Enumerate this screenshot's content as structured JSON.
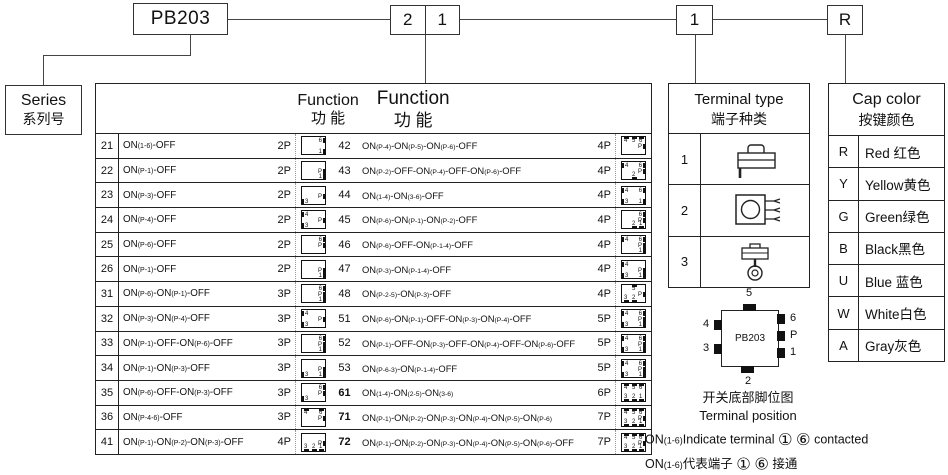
{
  "top_flow": {
    "series_code": "PB203",
    "function_code_digits": [
      "2",
      "1"
    ],
    "terminal_code": "1",
    "cap_color_code": "R"
  },
  "series_box": {
    "label_en": "Series",
    "label_zh": "系列号"
  },
  "function_table": {
    "header1_en": "Function",
    "header1_zh": "功  能",
    "header2_en": "Function",
    "header2_zh": "功  能",
    "left_rows": [
      {
        "code": "21",
        "fn": "ON(1-6)-OFF",
        "poles": "2P",
        "pins": [
          [
            "r",
            0,
            "6"
          ],
          [
            "r",
            2,
            "1"
          ]
        ]
      },
      {
        "code": "22",
        "fn": "ON(P-1)-OFF",
        "poles": "2P",
        "pins": [
          [
            "r",
            1,
            "P"
          ],
          [
            "r",
            2,
            "1"
          ]
        ]
      },
      {
        "code": "23",
        "fn": "ON(P-3)-OFF",
        "poles": "2P",
        "pins": [
          [
            "l",
            2,
            "3"
          ],
          [
            "r",
            1,
            "P"
          ]
        ]
      },
      {
        "code": "24",
        "fn": "ON(P-4)-OFF",
        "poles": "2P",
        "pins": [
          [
            "l",
            0,
            "4"
          ],
          [
            "l",
            2,
            "3"
          ],
          [
            "r",
            1,
            "P"
          ]
        ]
      },
      {
        "code": "25",
        "fn": "ON(P-6)-OFF",
        "poles": "2P",
        "pins": [
          [
            "r",
            0,
            "6"
          ],
          [
            "r",
            1,
            "P"
          ]
        ]
      },
      {
        "code": "26",
        "fn": "ON(P-1)-OFF",
        "poles": "2P",
        "pins": [
          [
            "r",
            1,
            "P"
          ],
          [
            "r",
            2,
            "1"
          ]
        ]
      },
      {
        "code": "31",
        "fn": "ON(P-6)-ON(P-1)-OFF",
        "poles": "3P",
        "pins": [
          [
            "r",
            0,
            "6"
          ],
          [
            "r",
            1,
            "P"
          ],
          [
            "r",
            2,
            "1"
          ]
        ]
      },
      {
        "code": "32",
        "fn": "ON(P-3)-ON(P-4)-OFF",
        "poles": "3P",
        "pins": [
          [
            "l",
            0,
            "4"
          ],
          [
            "l",
            2,
            "3"
          ],
          [
            "r",
            1,
            "P"
          ]
        ]
      },
      {
        "code": "33",
        "fn": "ON(P-1)-OFF-ON(P-6)-OFF",
        "poles": "3P",
        "pins": [
          [
            "r",
            0,
            "6"
          ],
          [
            "r",
            1,
            "P"
          ],
          [
            "r",
            2,
            "1"
          ]
        ]
      },
      {
        "code": "34",
        "fn": "ON(P-1)-ON(P-3)-OFF",
        "poles": "3P",
        "pins": [
          [
            "l",
            2,
            "3"
          ],
          [
            "r",
            1,
            "P"
          ],
          [
            "r",
            2,
            "1"
          ]
        ]
      },
      {
        "code": "35",
        "fn": "ON(P-6)-OFF-ON(P-3)-OFF",
        "poles": "3P",
        "pins": [
          [
            "l",
            2,
            "3"
          ],
          [
            "r",
            0,
            "6"
          ],
          [
            "r",
            1,
            "P"
          ]
        ]
      },
      {
        "code": "36",
        "fn": "ON(P-4-6)-OFF",
        "poles": "3P",
        "pins": [
          [
            "t",
            0,
            "4"
          ],
          [
            "t",
            2,
            "6"
          ],
          [
            "r",
            1,
            "P"
          ]
        ]
      },
      {
        "code": "41",
        "fn": "ON(P-1)-ON(P-2)-ON(P-3)-OFF",
        "poles": "4P",
        "pins": [
          [
            "b",
            0,
            "3"
          ],
          [
            "b",
            1,
            "2"
          ],
          [
            "b",
            2,
            "1"
          ],
          [
            "r",
            1,
            "P"
          ]
        ]
      }
    ],
    "right_rows": [
      {
        "code": "42",
        "fn": "ON(P-4)-ON(P-5)-ON(P-6)-OFF",
        "poles": "4P",
        "pins": [
          [
            "t",
            0,
            "4"
          ],
          [
            "t",
            1,
            "5"
          ],
          [
            "t",
            2,
            "6"
          ],
          [
            "r",
            1,
            "P"
          ]
        ]
      },
      {
        "code": "43",
        "fn": "ON(P-2)-OFF-ON(P-4)-OFF-ON(P-6)-OFF",
        "poles": "4P",
        "pins": [
          [
            "l",
            0,
            "4"
          ],
          [
            "r",
            0,
            "6"
          ],
          [
            "r",
            1,
            "P"
          ],
          [
            "b",
            1,
            "2"
          ]
        ]
      },
      {
        "code": "44",
        "fn": "ON(1-4)-ON(3-6)-OFF",
        "poles": "4P",
        "pins": [
          [
            "l",
            0,
            "4"
          ],
          [
            "l",
            2,
            "3"
          ],
          [
            "r",
            0,
            "6"
          ],
          [
            "r",
            2,
            "1"
          ]
        ]
      },
      {
        "code": "45",
        "fn": "ON(P-6)-ON(P-1)-ON(P-2)-OFF",
        "poles": "4P",
        "pins": [
          [
            "r",
            0,
            "6"
          ],
          [
            "r",
            1,
            "P"
          ],
          [
            "b",
            1,
            "2"
          ],
          [
            "b",
            2,
            "1"
          ]
        ]
      },
      {
        "code": "46",
        "fn": "ON(P-6)-OFF-ON(P-1-4)-OFF",
        "poles": "4P",
        "pins": [
          [
            "l",
            0,
            "4"
          ],
          [
            "r",
            0,
            "6"
          ],
          [
            "r",
            1,
            "P"
          ],
          [
            "r",
            2,
            "1"
          ]
        ]
      },
      {
        "code": "47",
        "fn": "ON(P-3)-ON(P-1-4)-OFF",
        "poles": "4P",
        "pins": [
          [
            "l",
            0,
            "4"
          ],
          [
            "l",
            2,
            "3"
          ],
          [
            "r",
            1,
            "P"
          ],
          [
            "r",
            2,
            "1"
          ]
        ]
      },
      {
        "code": "48",
        "fn": "ON(P-2-5)-ON(P-3)-OFF",
        "poles": "4P",
        "pins": [
          [
            "t",
            1,
            "5"
          ],
          [
            "r",
            1,
            "P"
          ],
          [
            "b",
            0,
            "3"
          ],
          [
            "b",
            1,
            "2"
          ]
        ]
      },
      {
        "code": "51",
        "fn": "ON(P-6)-ON(P-1)-OFF-ON(P-3)-ON(P-4)-OFF",
        "poles": "5P",
        "pins": [
          [
            "l",
            0,
            "4"
          ],
          [
            "l",
            2,
            "3"
          ],
          [
            "r",
            0,
            "6"
          ],
          [
            "r",
            1,
            "P"
          ],
          [
            "r",
            2,
            "1"
          ]
        ]
      },
      {
        "code": "52",
        "fn": "ON(P-1)-OFF-ON(P-3)-OFF-ON(P-4)-OFF-ON(P-6)-OFF",
        "poles": "5P",
        "pins": [
          [
            "l",
            0,
            "4"
          ],
          [
            "l",
            2,
            "3"
          ],
          [
            "r",
            0,
            "6"
          ],
          [
            "r",
            1,
            "P"
          ],
          [
            "r",
            2,
            "1"
          ]
        ]
      },
      {
        "code": "53",
        "fn": "ON(P-6-3)-ON(P-1-4)-OFF",
        "poles": "5P",
        "pins": [
          [
            "l",
            0,
            "4"
          ],
          [
            "l",
            2,
            "3"
          ],
          [
            "r",
            0,
            "6"
          ],
          [
            "r",
            1,
            "P"
          ],
          [
            "r",
            2,
            "1"
          ]
        ]
      },
      {
        "code": "61",
        "fn": "ON(1-4)-ON(2-5)-ON(3-6)",
        "poles": "6P",
        "bold": true,
        "pins": [
          [
            "t",
            0,
            "4"
          ],
          [
            "t",
            1,
            "5"
          ],
          [
            "t",
            2,
            "6"
          ],
          [
            "b",
            0,
            "3"
          ],
          [
            "b",
            1,
            "2"
          ],
          [
            "b",
            2,
            "1"
          ]
        ]
      },
      {
        "code": "71",
        "fn": "ON(P-1)-ON(P-2)-ON(P-3)-ON(P-4)-ON(P-5)-ON(P-6)",
        "poles": "7P",
        "bold": true,
        "pins": [
          [
            "t",
            0,
            "4"
          ],
          [
            "t",
            1,
            "5"
          ],
          [
            "t",
            2,
            "6"
          ],
          [
            "r",
            1,
            "P"
          ],
          [
            "b",
            0,
            "3"
          ],
          [
            "b",
            1,
            "2"
          ],
          [
            "b",
            2,
            "1"
          ]
        ]
      },
      {
        "code": "72",
        "fn": "ON(P-1)-ON(P-2)-ON(P-3)-ON(P-4)-ON(P-5)-ON(P-6)-OFF",
        "poles": "7P",
        "bold": true,
        "pins": [
          [
            "t",
            0,
            "4"
          ],
          [
            "t",
            1,
            "5"
          ],
          [
            "t",
            2,
            "6"
          ],
          [
            "r",
            1,
            "P"
          ],
          [
            "b",
            0,
            "3"
          ],
          [
            "b",
            1,
            "2"
          ],
          [
            "b",
            2,
            "1"
          ]
        ]
      }
    ]
  },
  "terminal_type": {
    "header_en": "Terminal type",
    "header_zh": "端子种类",
    "rows": [
      {
        "code": "1",
        "icon": "solder-lug-terminal-icon"
      },
      {
        "code": "2",
        "icon": "pcb-pin-terminal-icon"
      },
      {
        "code": "3",
        "icon": "screw-ring-terminal-icon"
      }
    ]
  },
  "cap_color": {
    "header_en": "Cap color",
    "header_zh": "按键颜色",
    "rows": [
      {
        "code": "R",
        "text": "Red 红色"
      },
      {
        "code": "Y",
        "text": "Yellow黄色"
      },
      {
        "code": "G",
        "text": "Green绿色"
      },
      {
        "code": "B",
        "text": "Black黑色"
      },
      {
        "code": "U",
        "text": "Blue 蓝色"
      },
      {
        "code": "W",
        "text": "White白色"
      },
      {
        "code": "A",
        "text": "Gray灰色"
      }
    ]
  },
  "pin_diagram": {
    "chip_label": "PB203",
    "top_pins": [
      "5"
    ],
    "bottom_pins": [
      "2"
    ],
    "left_pins": [
      "4",
      "3"
    ],
    "right_pins": [
      "6",
      "P",
      "1"
    ],
    "caption_zh": "开关底部脚位图",
    "caption_en": "Terminal position",
    "note_en": "ON(1-6)Indicate terminal ① ⑥  contacted",
    "note_zh": "ON(1-6)代表端子  ① ⑥  接通"
  }
}
